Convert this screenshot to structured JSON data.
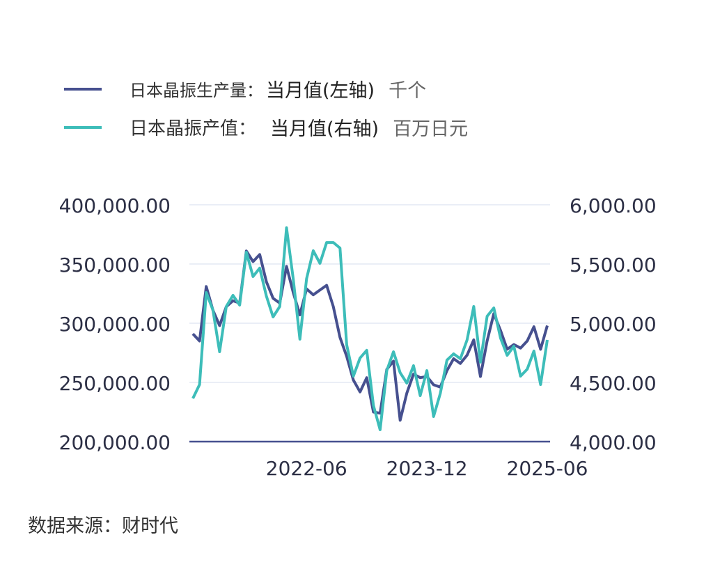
{
  "legend": [
    {
      "name": "日本晶振生产量：",
      "sub": "当月值(左轴)",
      "unit": "千个",
      "color": "#46508f"
    },
    {
      "name": "日本晶振产值：",
      "sub": "当月值(右轴)",
      "unit": "百万日元",
      "color": "#3dbdb9"
    }
  ],
  "source": "数据来源：财时代",
  "chart_data": {
    "type": "line",
    "x_start": "2021-01",
    "x_end": "2025-06",
    "x_frequency": "monthly",
    "x_tick_labels": [
      "2022-06",
      "2023-12",
      "2025-06"
    ],
    "y_left": {
      "range": [
        200000,
        400000
      ],
      "ticks": [
        "200,000.00",
        "250,000.00",
        "300,000.00",
        "350,000.00",
        "400,000.00"
      ]
    },
    "y_right": {
      "range": [
        4000,
        6000
      ],
      "ticks": [
        "4,000.00",
        "4,500.00",
        "5,000.00",
        "5,500.00",
        "6,000.00"
      ]
    },
    "grid": true,
    "legend_position": "top",
    "series": [
      {
        "name": "日本晶振生产量：当月值(左轴) 千个",
        "axis": "left",
        "color": "#46508f",
        "values": [
          291000,
          285000,
          331000,
          311000,
          298000,
          314000,
          319000,
          317000,
          361000,
          352000,
          358000,
          335000,
          321000,
          317000,
          348000,
          326000,
          307000,
          329000,
          324000,
          328000,
          332000,
          314000,
          288000,
          272000,
          252000,
          242000,
          254000,
          225000,
          224000,
          261000,
          268000,
          218000,
          241000,
          257000,
          254000,
          255000,
          248000,
          246000,
          260000,
          270000,
          266000,
          273000,
          286000,
          255000,
          285000,
          308000,
          294000,
          278000,
          282000,
          279000,
          285000,
          297000,
          278000,
          298000
        ]
      },
      {
        "name": "日本晶振产值：当月值(右轴) 百万日元",
        "axis": "right",
        "color": "#3dbdb9",
        "values": [
          4365,
          4482,
          5259,
          5112,
          4759,
          5141,
          5235,
          5153,
          5600,
          5394,
          5465,
          5229,
          5053,
          5141,
          5806,
          5376,
          4865,
          5376,
          5612,
          5506,
          5682,
          5682,
          5635,
          4818,
          4553,
          4706,
          4771,
          4306,
          4100,
          4600,
          4759,
          4582,
          4494,
          4641,
          4388,
          4600,
          4212,
          4406,
          4688,
          4741,
          4700,
          4859,
          5141,
          4671,
          5059,
          5129,
          4876,
          4729,
          4806,
          4553,
          4612,
          4765,
          4482,
          4859
        ]
      }
    ]
  }
}
